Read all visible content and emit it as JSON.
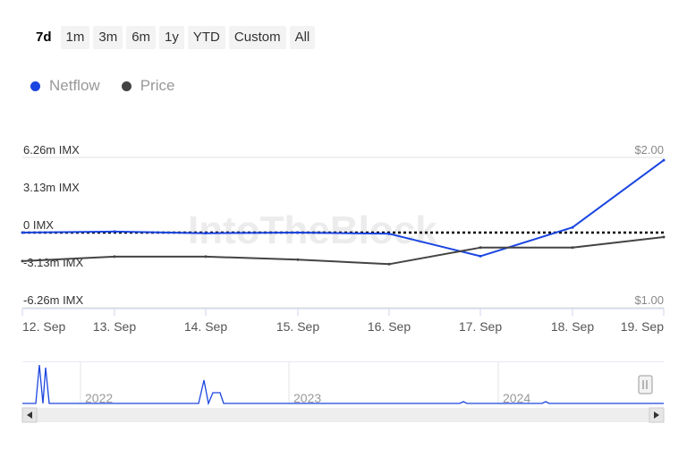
{
  "range_selector": {
    "buttons": [
      "7d",
      "1m",
      "3m",
      "6m",
      "1y",
      "YTD",
      "Custom",
      "All"
    ],
    "active": "7d"
  },
  "legend": [
    {
      "name": "Netflow",
      "color": "#1a45e0"
    },
    {
      "name": "Price",
      "color": "#444444"
    }
  ],
  "watermark": "IntoTheBlock",
  "chart_data": {
    "type": "line",
    "x": [
      "12. Sep",
      "13. Sep",
      "14. Sep",
      "15. Sep",
      "16. Sep",
      "17. Sep",
      "18. Sep",
      "19. Sep"
    ],
    "series": [
      {
        "name": "Netflow",
        "axis": "left",
        "color": "#1a45e0",
        "values": [
          0.0,
          0.08,
          -0.05,
          0.0,
          -0.1,
          -1.97,
          0.43,
          6.03
        ]
      },
      {
        "name": "Price",
        "axis": "right",
        "color": "#444444",
        "values": [
          1.31,
          1.34,
          1.34,
          1.32,
          1.29,
          1.4,
          1.4,
          1.47
        ]
      }
    ],
    "left_axis": {
      "ticks": [
        "6.26m IMX",
        "3.13m IMX",
        "0 IMX",
        "-3.13m IMX",
        "-6.26m IMX"
      ],
      "range": [
        -6.26,
        6.26
      ],
      "unit": "m IMX"
    },
    "right_axis": {
      "ticks": [
        "$2.00",
        "$1.00"
      ],
      "range": [
        1.0,
        2.0
      ]
    },
    "zero_line": "dotted",
    "navigator": {
      "years": [
        "2022",
        "2023",
        "2024"
      ]
    }
  }
}
